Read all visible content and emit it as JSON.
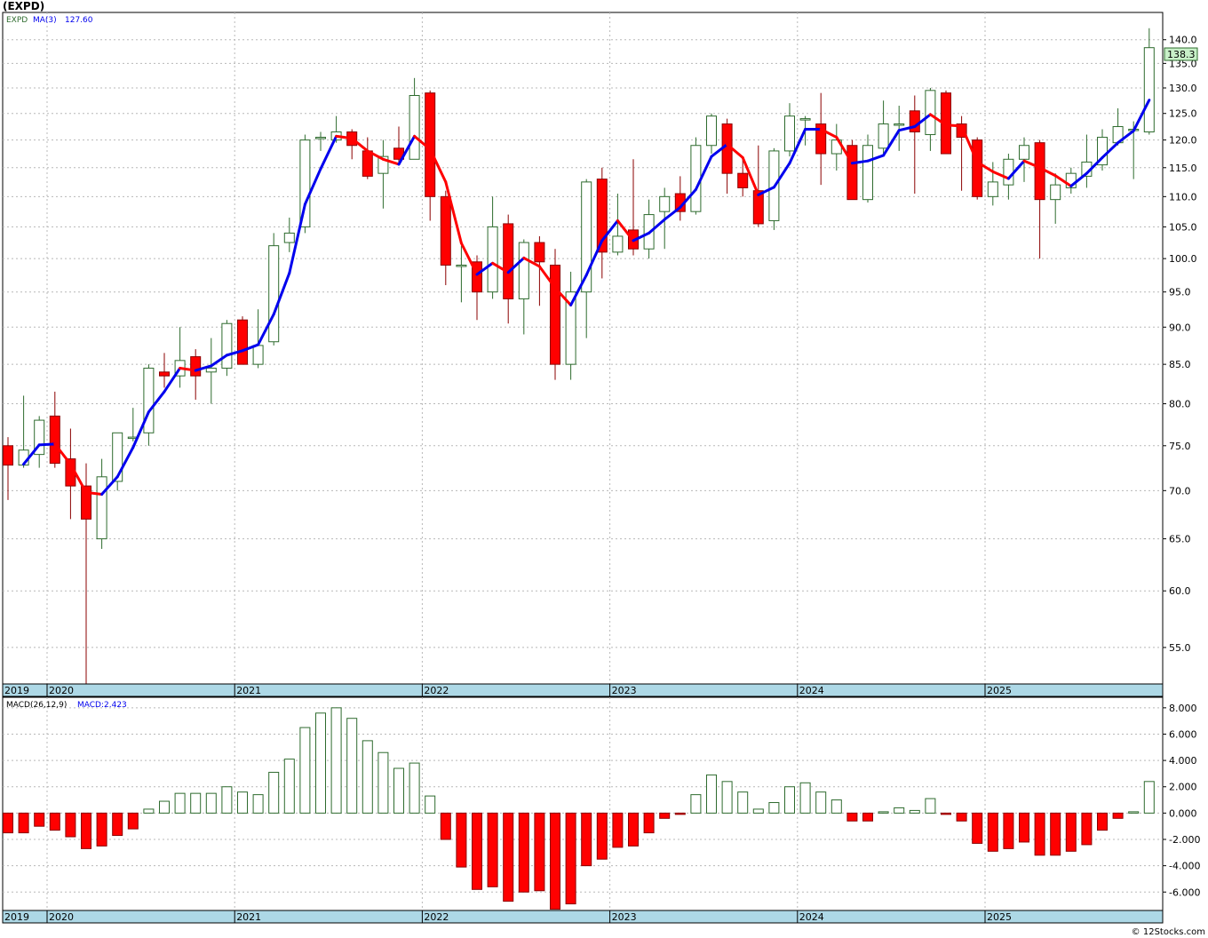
{
  "title": "(EXPD)",
  "legend": {
    "symbol": "EXPD",
    "ma_label": "MA(3)",
    "ma_value": "127.60"
  },
  "macd_legend": {
    "label": "MACD(26,12,9)",
    "value_label": "MACD:2.423"
  },
  "last_price": "138.3",
  "watermark": "© 12Stocks.com",
  "year_labels": [
    "2019",
    "2020",
    "2021",
    "2022",
    "2023",
    "2024",
    "2025"
  ],
  "colors": {
    "up_body": "#ffffff",
    "up_outline": "#2e6b2e",
    "down_body": "#ff0000",
    "down_outline": "#8b0000",
    "ma_up": "#0000ee",
    "ma_down": "#ff0000",
    "axis_band": "#add8e6",
    "grid": "#b8b8b8",
    "last_price_bg": "#c8f0c8"
  },
  "chart_data": [
    {
      "type": "candlestick",
      "name": "price",
      "y_scale": "log",
      "ylim": [
        52,
        146
      ],
      "yticks": [
        55,
        60,
        65,
        70,
        75,
        80,
        85,
        90,
        95,
        100,
        105,
        110,
        115,
        120,
        125,
        130,
        135,
        140
      ],
      "candles": [
        [
          75.0,
          76.0,
          69.0,
          72.8
        ],
        [
          72.8,
          81.0,
          72.5,
          74.5
        ],
        [
          74.0,
          78.5,
          72.5,
          78.0
        ],
        [
          78.5,
          81.5,
          72.5,
          73.0
        ],
        [
          73.5,
          77.0,
          67.0,
          70.5
        ],
        [
          70.5,
          73.0,
          51.0,
          67.0
        ],
        [
          65.0,
          73.5,
          64.0,
          71.5
        ],
        [
          71.0,
          76.5,
          70.0,
          76.5
        ],
        [
          76.0,
          79.5,
          75.5,
          76.0
        ],
        [
          76.5,
          85.0,
          75.0,
          84.5
        ],
        [
          84.0,
          86.5,
          82.0,
          83.5
        ],
        [
          83.5,
          90.0,
          82.0,
          85.5
        ],
        [
          86.0,
          87.0,
          80.5,
          83.5
        ],
        [
          84.0,
          88.5,
          80.0,
          84.5
        ],
        [
          84.5,
          91.0,
          83.5,
          90.5
        ],
        [
          91.0,
          91.5,
          85.0,
          85.0
        ],
        [
          85.0,
          92.5,
          84.5,
          87.5
        ],
        [
          88.0,
          104.0,
          87.5,
          102.0
        ],
        [
          102.5,
          106.5,
          101.0,
          104.0
        ],
        [
          105.0,
          121.0,
          104.0,
          120.0
        ],
        [
          120.5,
          121.5,
          118.0,
          120.5
        ],
        [
          120.0,
          124.5,
          119.5,
          121.5
        ],
        [
          121.5,
          122.0,
          116.5,
          119.0
        ],
        [
          118.0,
          120.5,
          113.0,
          113.5
        ],
        [
          114.0,
          120.0,
          108.0,
          117.0
        ],
        [
          118.5,
          122.5,
          115.5,
          116.5
        ],
        [
          116.5,
          132.0,
          116.5,
          128.5
        ],
        [
          129.0,
          129.5,
          106.0,
          110.0
        ],
        [
          110.0,
          111.0,
          96.0,
          99.0
        ],
        [
          99.0,
          102.0,
          93.5,
          99.0
        ],
        [
          99.5,
          100.5,
          91.0,
          95.0
        ],
        [
          95.0,
          110.0,
          94.0,
          105.0
        ],
        [
          105.5,
          107.0,
          90.5,
          94.0
        ],
        [
          94.0,
          103.0,
          89.0,
          102.5
        ],
        [
          102.5,
          103.5,
          93.0,
          99.5
        ],
        [
          99.0,
          101.5,
          83.0,
          85.0
        ],
        [
          85.0,
          98.0,
          83.0,
          95.0
        ],
        [
          95.0,
          113.0,
          88.5,
          112.5
        ],
        [
          113.0,
          115.0,
          97.0,
          101.0
        ],
        [
          101.0,
          110.5,
          100.5,
          103.5
        ],
        [
          104.5,
          116.5,
          100.5,
          101.5
        ],
        [
          101.5,
          109.5,
          100.0,
          107.0
        ],
        [
          107.5,
          111.5,
          101.5,
          110.0
        ],
        [
          110.5,
          113.5,
          106.0,
          107.5
        ],
        [
          107.5,
          120.5,
          107.0,
          119.0
        ],
        [
          119.0,
          125.0,
          117.5,
          124.5
        ],
        [
          123.0,
          124.0,
          110.5,
          114.0
        ],
        [
          114.0,
          117.0,
          110.0,
          111.5
        ],
        [
          111.0,
          119.0,
          105.0,
          105.5
        ],
        [
          106.0,
          118.5,
          104.5,
          118.0
        ],
        [
          118.0,
          127.0,
          117.0,
          124.5
        ],
        [
          124.0,
          124.5,
          119.0,
          124.0
        ],
        [
          123.0,
          129.0,
          112.0,
          117.5
        ],
        [
          117.5,
          123.0,
          114.5,
          120.0
        ],
        [
          119.0,
          120.0,
          109.5,
          109.5
        ],
        [
          109.5,
          121.0,
          109.0,
          119.0
        ],
        [
          118.5,
          127.5,
          117.0,
          123.0
        ],
        [
          123.0,
          126.5,
          118.0,
          123.0
        ],
        [
          125.5,
          128.5,
          110.5,
          121.5
        ],
        [
          121.0,
          130.0,
          118.0,
          129.5
        ],
        [
          129.0,
          129.5,
          117.5,
          117.5
        ],
        [
          123.0,
          124.5,
          111.0,
          120.5
        ],
        [
          120.0,
          120.5,
          109.5,
          110.0
        ],
        [
          110.0,
          116.0,
          108.5,
          112.5
        ],
        [
          112.0,
          117.5,
          109.5,
          116.5
        ],
        [
          116.5,
          120.5,
          112.5,
          119.0
        ],
        [
          119.5,
          120.0,
          100.0,
          109.5
        ],
        [
          109.5,
          114.0,
          105.5,
          112.0
        ],
        [
          111.5,
          115.0,
          110.5,
          114.0
        ],
        [
          113.5,
          121.0,
          111.5,
          116.0
        ],
        [
          115.5,
          122.0,
          114.5,
          120.5
        ],
        [
          119.5,
          126.0,
          119.0,
          122.5
        ],
        [
          122.0,
          123.5,
          113.0,
          122.0
        ],
        [
          121.5,
          142.5,
          121.0,
          138.3
        ]
      ],
      "ma3": [
        null,
        72.9,
        75.1,
        75.2,
        72.9,
        69.8,
        69.6,
        71.5,
        74.8,
        79.0,
        81.5,
        84.5,
        84.2,
        84.8,
        86.2,
        86.8,
        87.6,
        91.8,
        97.8,
        108.7,
        114.8,
        120.7,
        120.3,
        118.0,
        116.5,
        115.6,
        120.7,
        118.3,
        112.5,
        102.4,
        97.6,
        99.3,
        97.9,
        100.1,
        98.8,
        95.6,
        93.1,
        97.5,
        102.8,
        106.0,
        102.8,
        104.0,
        106.2,
        108.2,
        111.2,
        117.0,
        119.2,
        116.8,
        110.3,
        111.6,
        115.8,
        122.0,
        122.0,
        120.5,
        115.8,
        116.2,
        117.2,
        121.8,
        122.5,
        124.8,
        122.8,
        122.6,
        116.0,
        114.3,
        113.1,
        116.2,
        115.0,
        113.6,
        111.8,
        114.0,
        116.8,
        119.5,
        121.7,
        127.6
      ]
    },
    {
      "type": "bar",
      "name": "MACD",
      "ylim": [
        -7.4,
        8.8
      ],
      "yticks": [
        -6,
        -4,
        -2,
        0,
        2,
        4,
        6,
        8
      ],
      "values": [
        -1.5,
        -1.5,
        -1.0,
        -1.3,
        -1.8,
        -2.7,
        -2.5,
        -1.7,
        -1.2,
        0.3,
        0.9,
        1.5,
        1.5,
        1.5,
        2.0,
        1.6,
        1.4,
        3.1,
        4.1,
        6.5,
        7.6,
        8.0,
        7.2,
        5.5,
        4.6,
        3.4,
        3.8,
        1.3,
        -2.0,
        -4.1,
        -5.8,
        -5.6,
        -6.7,
        -6.0,
        -5.9,
        -7.3,
        -6.9,
        -4.0,
        -3.5,
        -2.6,
        -2.5,
        -1.5,
        -0.4,
        -0.1,
        1.4,
        2.9,
        2.4,
        1.6,
        0.3,
        0.8,
        2.0,
        2.3,
        1.6,
        1.0,
        -0.6,
        -0.6,
        0.1,
        0.4,
        0.2,
        1.1,
        -0.1,
        -0.6,
        -2.3,
        -2.9,
        -2.7,
        -2.2,
        -3.2,
        -3.2,
        -2.9,
        -2.4,
        -1.3,
        -0.4,
        0.1,
        2.4
      ]
    }
  ]
}
